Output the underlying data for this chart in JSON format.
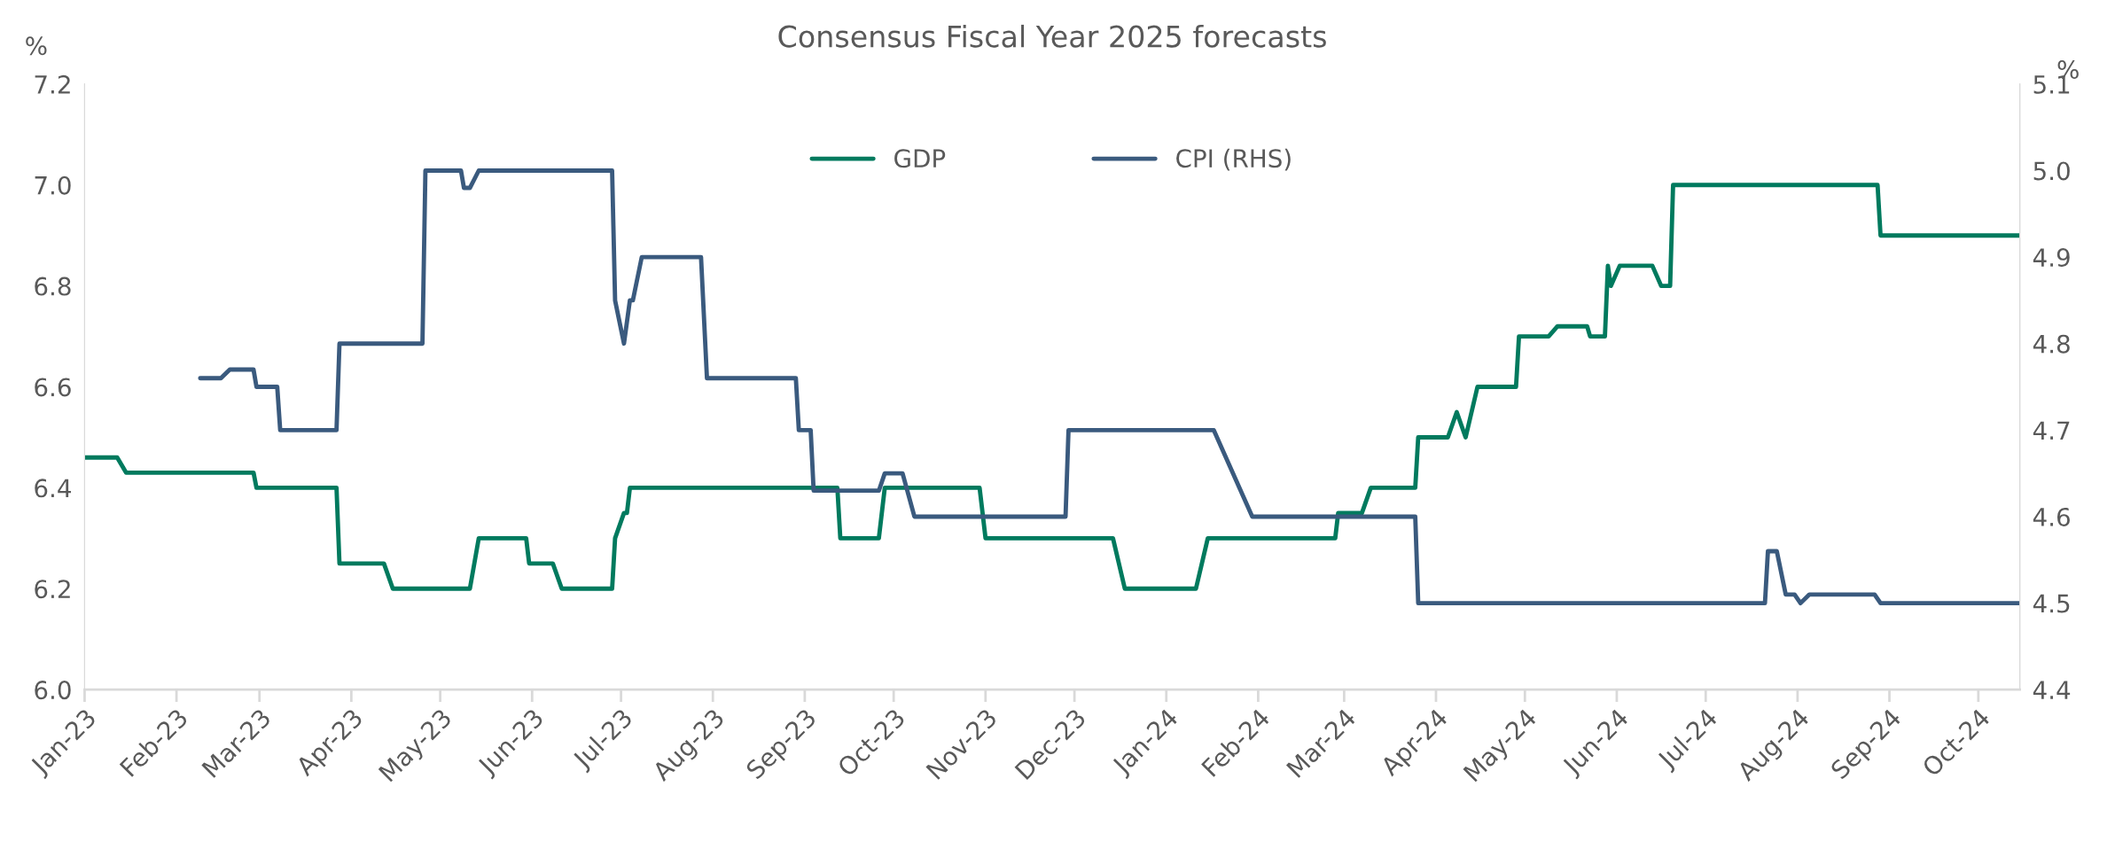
{
  "chart_data": {
    "type": "line",
    "title": "Consensus Fiscal Year 2025 forecasts",
    "ylabel": "%",
    "y2label": "%",
    "series": [
      {
        "name": "GDP",
        "color": "#007a5e",
        "axis": "y",
        "x": [
          "2023-01-01",
          "2023-01-12",
          "2023-01-15",
          "2023-02-27",
          "2023-02-28",
          "2023-03-27",
          "2023-03-28",
          "2023-04-12",
          "2023-04-15",
          "2023-05-11",
          "2023-05-14",
          "2023-05-30",
          "2023-05-31",
          "2023-06-08",
          "2023-06-11",
          "2023-06-28",
          "2023-06-29",
          "2023-07-02",
          "2023-07-03",
          "2023-07-04",
          "2023-09-12",
          "2023-09-13",
          "2023-09-26",
          "2023-09-28",
          "2023-10-30",
          "2023-11-01",
          "2023-12-14",
          "2023-12-18",
          "2024-01-11",
          "2024-01-15",
          "2024-02-27",
          "2024-02-28",
          "2024-03-07",
          "2024-03-10",
          "2024-03-25",
          "2024-03-26",
          "2024-04-05",
          "2024-04-08",
          "2024-04-11",
          "2024-04-15",
          "2024-04-28",
          "2024-04-29",
          "2024-05-09",
          "2024-05-12",
          "2024-05-22",
          "2024-05-23",
          "2024-05-28",
          "2024-05-29",
          "2024-05-30",
          "2024-06-02",
          "2024-06-13",
          "2024-06-16",
          "2024-06-19",
          "2024-06-20",
          "2024-08-28",
          "2024-08-29",
          "2024-10-15"
        ],
        "values": [
          6.46,
          6.46,
          6.43,
          6.43,
          6.4,
          6.4,
          6.25,
          6.25,
          6.2,
          6.2,
          6.3,
          6.3,
          6.25,
          6.25,
          6.2,
          6.2,
          6.3,
          6.35,
          6.35,
          6.4,
          6.4,
          6.3,
          6.3,
          6.4,
          6.4,
          6.3,
          6.3,
          6.2,
          6.2,
          6.3,
          6.3,
          6.35,
          6.35,
          6.4,
          6.4,
          6.5,
          6.5,
          6.55,
          6.5,
          6.6,
          6.6,
          6.7,
          6.7,
          6.72,
          6.72,
          6.7,
          6.7,
          6.84,
          6.8,
          6.84,
          6.84,
          6.8,
          6.8,
          7.0,
          7.0,
          6.9,
          6.9
        ]
      },
      {
        "name": "CPI (RHS)",
        "color": "#3a5a7e",
        "axis": "y2",
        "x": [
          "2023-02-09",
          "2023-02-16",
          "2023-02-19",
          "2023-02-27",
          "2023-02-28",
          "2023-03-07",
          "2023-03-08",
          "2023-03-27",
          "2023-03-28",
          "2023-04-25",
          "2023-04-26",
          "2023-05-08",
          "2023-05-09",
          "2023-05-11",
          "2023-05-14",
          "2023-06-28",
          "2023-06-29",
          "2023-07-02",
          "2023-07-04",
          "2023-07-05",
          "2023-07-08",
          "2023-07-28",
          "2023-07-30",
          "2023-08-29",
          "2023-08-30",
          "2023-09-03",
          "2023-09-04",
          "2023-09-26",
          "2023-09-28",
          "2023-10-04",
          "2023-10-08",
          "2023-11-28",
          "2023-11-29",
          "2024-01-17",
          "2024-01-30",
          "2024-03-25",
          "2024-03-26",
          "2024-07-21",
          "2024-07-22",
          "2024-07-25",
          "2024-07-28",
          "2024-07-31",
          "2024-08-02",
          "2024-08-05",
          "2024-08-27",
          "2024-08-29",
          "2024-10-15"
        ],
        "values": [
          4.76,
          4.76,
          4.77,
          4.77,
          4.75,
          4.75,
          4.7,
          4.7,
          4.8,
          4.8,
          5.0,
          5.0,
          4.98,
          4.98,
          5.0,
          5.0,
          4.85,
          4.8,
          4.85,
          4.85,
          4.9,
          4.9,
          4.76,
          4.76,
          4.7,
          4.7,
          4.63,
          4.63,
          4.65,
          4.65,
          4.6,
          4.6,
          4.7,
          4.7,
          4.6,
          4.6,
          4.5,
          4.5,
          4.56,
          4.56,
          4.51,
          4.51,
          4.5,
          4.51,
          4.51,
          4.5,
          4.5
        ]
      }
    ],
    "xlim": [
      "2023-01-01",
      "2024-10-15"
    ],
    "xticks": [
      {
        "value": "2023-01-01",
        "label": "Jan-23"
      },
      {
        "value": "2023-02-01",
        "label": "Feb-23"
      },
      {
        "value": "2023-03-01",
        "label": "Mar-23"
      },
      {
        "value": "2023-04-01",
        "label": "Apr-23"
      },
      {
        "value": "2023-05-01",
        "label": "May-23"
      },
      {
        "value": "2023-06-01",
        "label": "Jun-23"
      },
      {
        "value": "2023-07-01",
        "label": "Jul-23"
      },
      {
        "value": "2023-08-01",
        "label": "Aug-23"
      },
      {
        "value": "2023-09-01",
        "label": "Sep-23"
      },
      {
        "value": "2023-10-01",
        "label": "Oct-23"
      },
      {
        "value": "2023-11-01",
        "label": "Nov-23"
      },
      {
        "value": "2023-12-01",
        "label": "Dec-23"
      },
      {
        "value": "2024-01-01",
        "label": "Jan-24"
      },
      {
        "value": "2024-02-01",
        "label": "Feb-24"
      },
      {
        "value": "2024-03-01",
        "label": "Mar-24"
      },
      {
        "value": "2024-04-01",
        "label": "Apr-24"
      },
      {
        "value": "2024-05-01",
        "label": "May-24"
      },
      {
        "value": "2024-06-01",
        "label": "Jun-24"
      },
      {
        "value": "2024-07-01",
        "label": "Jul-24"
      },
      {
        "value": "2024-08-01",
        "label": "Aug-24"
      },
      {
        "value": "2024-09-01",
        "label": "Sep-24"
      },
      {
        "value": "2024-10-01",
        "label": "Oct-24"
      }
    ],
    "ylim": [
      6.0,
      7.2
    ],
    "yticks": [
      {
        "value": 6.0,
        "label": "6.0"
      },
      {
        "value": 6.2,
        "label": "6.2"
      },
      {
        "value": 6.4,
        "label": "6.4"
      },
      {
        "value": 6.6,
        "label": "6.6"
      },
      {
        "value": 6.8,
        "label": "6.8"
      },
      {
        "value": 7.0,
        "label": "7.0"
      },
      {
        "value": 7.2,
        "label": "7.2"
      }
    ],
    "y2lim": [
      4.4,
      5.1
    ],
    "y2ticks": [
      4.4,
      4.5,
      4.6,
      4.7,
      4.8,
      4.9,
      {
        "value": 5.0,
        "label": "5.0"
      },
      5.1
    ],
    "legend": "top",
    "grid": false,
    "marker": "none",
    "line_style": "solid"
  }
}
